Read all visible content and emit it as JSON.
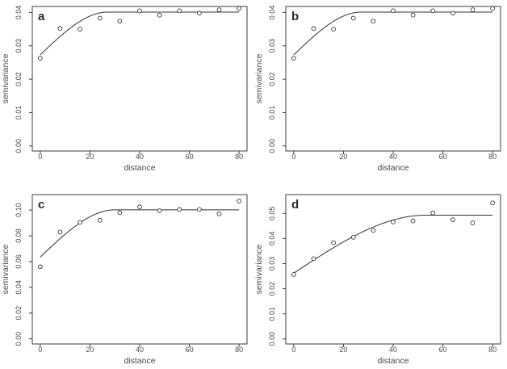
{
  "figure": {
    "background": "#ffffff",
    "line_color": "#3c3c3c",
    "text_color": "#4a4a4a",
    "point_style": "open-circle"
  },
  "chart_data": [
    {
      "type": "scatter",
      "panel_label": "a",
      "xlabel": "distance",
      "ylabel": "semivariance",
      "x": [
        0,
        8,
        16,
        24,
        32,
        40,
        48,
        56,
        64,
        72,
        80
      ],
      "y": [
        0.0263,
        0.0352,
        0.035,
        0.0383,
        0.0374,
        0.0405,
        0.0392,
        0.0405,
        0.0398,
        0.0408,
        0.0412
      ],
      "xlim": [
        0,
        80
      ],
      "ylim": [
        0,
        0.04
      ],
      "xlim_display": [
        -3.2,
        83.2
      ],
      "ylim_display": [
        -0.0015,
        0.0418
      ],
      "xticks": [
        0,
        20,
        40,
        60,
        80
      ],
      "xtick_labels": [
        "0",
        "20",
        "40",
        "60",
        "80"
      ],
      "yticks": [
        0,
        0.01,
        0.02,
        0.03,
        0.04
      ],
      "ytick_labels": [
        "0.00",
        "0.01",
        "0.02",
        "0.03",
        "0.04"
      ],
      "grid": false,
      "legend": "none",
      "fit_curve": {
        "model": "spherical",
        "nugget": 0.0273,
        "sill": 0.0401,
        "range": 27
      }
    },
    {
      "type": "scatter",
      "panel_label": "b",
      "xlabel": "distance",
      "ylabel": "semivariance",
      "x": [
        0,
        8,
        16,
        24,
        32,
        40,
        48,
        56,
        64,
        72,
        80
      ],
      "y": [
        0.0263,
        0.0352,
        0.035,
        0.0383,
        0.0374,
        0.0405,
        0.0392,
        0.0405,
        0.0398,
        0.0408,
        0.0412
      ],
      "xlim": [
        0,
        80
      ],
      "ylim": [
        0,
        0.04
      ],
      "xlim_display": [
        -3.2,
        83.2
      ],
      "ylim_display": [
        -0.0015,
        0.0418
      ],
      "xticks": [
        0,
        20,
        40,
        60,
        80
      ],
      "xtick_labels": [
        "0",
        "20",
        "40",
        "60",
        "80"
      ],
      "yticks": [
        0,
        0.01,
        0.02,
        0.03,
        0.04
      ],
      "ytick_labels": [
        "0.00",
        "0.01",
        "0.02",
        "0.03",
        "0.04"
      ],
      "grid": false,
      "legend": "none",
      "fit_curve": {
        "model": "spherical",
        "nugget": 0.0273,
        "sill": 0.0401,
        "range": 27
      }
    },
    {
      "type": "scatter",
      "panel_label": "c",
      "xlabel": "distance",
      "ylabel": "semivariance",
      "x": [
        0,
        8,
        16,
        24,
        32,
        40,
        48,
        56,
        64,
        72,
        80
      ],
      "y": [
        0.056,
        0.083,
        0.0905,
        0.092,
        0.098,
        0.1025,
        0.0995,
        0.1005,
        0.1005,
        0.097,
        0.107
      ],
      "xlim": [
        0,
        80
      ],
      "ylim": [
        0,
        0.1
      ],
      "xlim_display": [
        -3.2,
        83.2
      ],
      "ylim_display": [
        -0.004,
        0.112
      ],
      "xticks": [
        0,
        20,
        40,
        60,
        80
      ],
      "xtick_labels": [
        "0",
        "20",
        "40",
        "60",
        "80"
      ],
      "yticks": [
        0,
        0.02,
        0.04,
        0.06,
        0.08,
        0.1
      ],
      "ytick_labels": [
        "0.00",
        "0.02",
        "0.04",
        "0.06",
        "0.08",
        "0.10"
      ],
      "grid": false,
      "legend": "none",
      "fit_curve": {
        "model": "spherical",
        "nugget": 0.0635,
        "sill": 0.1002,
        "range": 30
      }
    },
    {
      "type": "scatter",
      "panel_label": "d",
      "xlabel": "distance",
      "ylabel": "semivariance",
      "x": [
        0,
        8,
        16,
        24,
        32,
        40,
        48,
        56,
        64,
        72,
        80
      ],
      "y": [
        0.0257,
        0.032,
        0.0383,
        0.0405,
        0.0432,
        0.0466,
        0.047,
        0.0502,
        0.0475,
        0.0462,
        0.0542
      ],
      "xlim": [
        0,
        80
      ],
      "ylim": [
        0,
        0.05
      ],
      "xlim_display": [
        -3.2,
        83.2
      ],
      "ylim_display": [
        -0.002,
        0.0575
      ],
      "xticks": [
        0,
        20,
        40,
        60,
        80
      ],
      "xtick_labels": [
        "0",
        "20",
        "40",
        "60",
        "80"
      ],
      "yticks": [
        0,
        0.01,
        0.02,
        0.03,
        0.04,
        0.05
      ],
      "ytick_labels": [
        "0.00",
        "0.01",
        "0.02",
        "0.03",
        "0.04",
        "0.05"
      ],
      "grid": false,
      "legend": "none",
      "fit_curve": {
        "model": "spherical",
        "nugget": 0.0262,
        "sill": 0.0493,
        "range": 53
      }
    }
  ]
}
